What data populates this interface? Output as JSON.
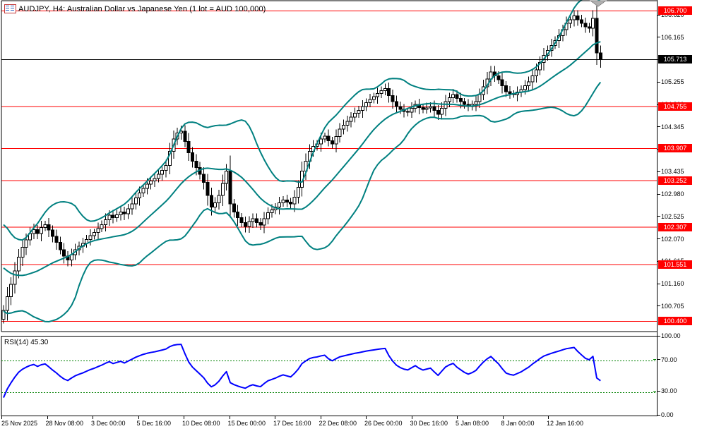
{
  "header": {
    "title": "AUDJPY, H4: Australian Dollar vs Japanese Yen (1 lot = AUD 100,000)",
    "icon": "chart-icon"
  },
  "colors": {
    "background": "#ffffff",
    "up_candle_fill": "#ffffff",
    "down_candle_fill": "#000000",
    "candle_outline": "#000000",
    "bollinger_line": "#008080",
    "sr_line": "#ff0000",
    "current_price_line": "#000000",
    "rsi_line": "#0000ff",
    "rsi_level_line": "#008000",
    "badge_red": "#ff0000",
    "badge_black": "#000000",
    "shift_marker_gray": "#b0b0b0"
  },
  "price_axis": {
    "plain_ticks": [
      "106.620",
      "106.165",
      "105.710",
      "105.255",
      "104.800",
      "104.345",
      "103.890",
      "103.435",
      "102.980",
      "102.525",
      "102.070",
      "101.615",
      "101.160",
      "100.705"
    ],
    "sr_badges": [
      "106.700",
      "104.755",
      "103.907",
      "103.252",
      "102.307",
      "101.551",
      "100.400"
    ],
    "current_badge": "105.713"
  },
  "rsi_panel": {
    "label": "RSI(14) 45.30",
    "axis_labels": [
      "100.00",
      "70.00",
      "30.00",
      "0.00"
    ],
    "axis_values": [
      100,
      70,
      30,
      0
    ],
    "level_lines": [
      70,
      30
    ]
  },
  "time_axis": {
    "labels": [
      "25 Nov 2025",
      "28 Nov 08:00",
      "3 Dec 00:00",
      "5 Dec 16:00",
      "10 Dec 08:00",
      "15 Dec 00:00",
      "17 Dec 16:00",
      "22 Dec 08:00",
      "26 Dec 00:00",
      "30 Dec 16:00",
      "5 Jan 08:00",
      "8 Jan 00:00",
      "12 Jan 16:00"
    ]
  },
  "chart_data": {
    "type": "candlestick",
    "symbol": "AUDJPY",
    "timeframe": "H4",
    "title": "AUDJPY, H4: Australian Dollar vs Japanese Yen (1 lot = AUD 100,000)",
    "visible_price_range": [
      100.25,
      106.93
    ],
    "grid": false,
    "closes": [
      100.62,
      100.9,
      101.15,
      101.42,
      101.7,
      101.9,
      102.05,
      102.18,
      102.26,
      102.18,
      102.3,
      102.36,
      102.25,
      102.12,
      102.0,
      101.85,
      101.72,
      101.64,
      101.75,
      101.85,
      101.92,
      101.98,
      102.06,
      102.14,
      102.2,
      102.28,
      102.36,
      102.46,
      102.55,
      102.5,
      102.56,
      102.62,
      102.58,
      102.68,
      102.78,
      102.9,
      103.0,
      103.1,
      103.18,
      103.25,
      103.3,
      103.38,
      103.46,
      103.56,
      103.85,
      104.1,
      104.22,
      104.26,
      104.05,
      103.82,
      103.65,
      103.52,
      103.38,
      103.22,
      102.95,
      102.72,
      102.8,
      102.95,
      103.2,
      103.45,
      102.78,
      102.62,
      102.5,
      102.4,
      102.32,
      102.42,
      102.48,
      102.4,
      102.35,
      102.48,
      102.6,
      102.66,
      102.72,
      102.8,
      102.86,
      102.82,
      102.78,
      102.92,
      103.12,
      103.45,
      103.65,
      103.85,
      103.95,
      104.0,
      104.1,
      104.16,
      104.06,
      104.0,
      104.15,
      104.3,
      104.38,
      104.46,
      104.54,
      104.62,
      104.68,
      104.76,
      104.84,
      104.9,
      104.96,
      105.02,
      105.08,
      105.12,
      104.98,
      104.86,
      104.76,
      104.7,
      104.66,
      104.64,
      104.72,
      104.8,
      104.74,
      104.7,
      104.73,
      104.76,
      104.68,
      104.6,
      104.72,
      104.86,
      104.94,
      105.0,
      104.92,
      104.86,
      104.8,
      104.76,
      104.8,
      104.86,
      105.0,
      105.16,
      105.32,
      105.46,
      105.38,
      105.3,
      105.18,
      105.06,
      105.02,
      105.0,
      105.05,
      105.1,
      105.18,
      105.26,
      105.38,
      105.5,
      105.65,
      105.8,
      105.9,
      106.0,
      106.1,
      106.2,
      106.32,
      106.45,
      106.52,
      106.6,
      106.52,
      106.45,
      106.38,
      106.35,
      106.55,
      105.85,
      105.71
    ],
    "sr_levels": [
      106.7,
      104.755,
      103.907,
      103.252,
      102.307,
      101.551,
      100.4
    ],
    "current_price": 105.713,
    "indicators": {
      "bollinger": {
        "period": 20,
        "deviation": 2,
        "color": "#008080"
      },
      "rsi": {
        "period": 14,
        "current_value": 45.3,
        "color": "#0000ff",
        "levels": [
          70,
          30
        ],
        "range": [
          0,
          100
        ]
      }
    },
    "x_labels": [
      "25 Nov 2025",
      "28 Nov 08:00",
      "3 Dec 00:00",
      "5 Dec 16:00",
      "10 Dec 08:00",
      "15 Dec 00:00",
      "17 Dec 16:00",
      "22 Dec 08:00",
      "26 Dec 00:00",
      "30 Dec 16:00",
      "5 Jan 08:00",
      "8 Jan 00:00",
      "12 Jan 16:00"
    ]
  }
}
